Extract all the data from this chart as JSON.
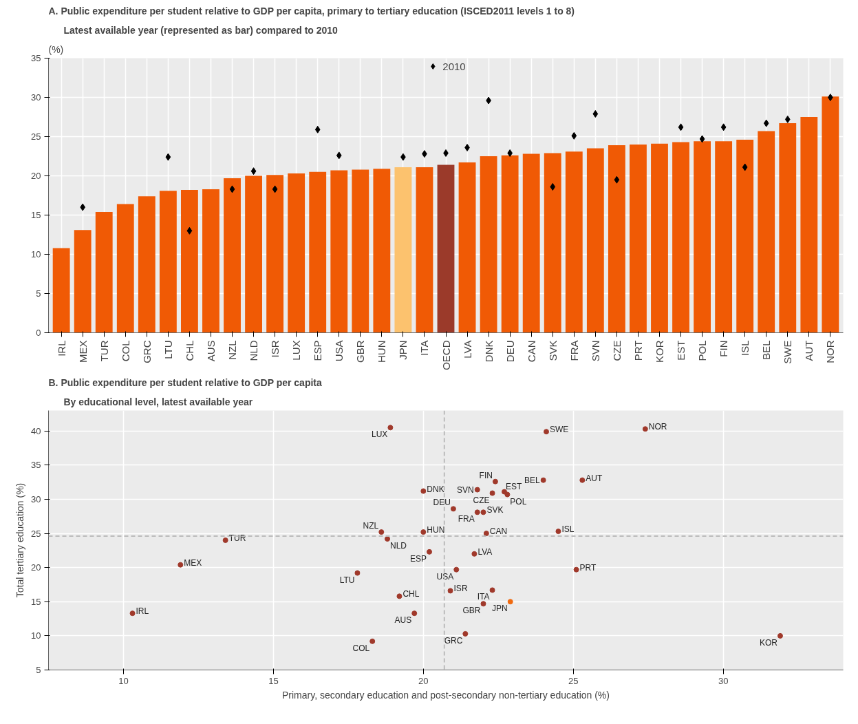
{
  "chart_data": [
    {
      "type": "bar",
      "title": "A. Public expenditure per student relative to GDP per capita, primary to tertiary education (ISCED2011 levels 1 to 8)",
      "subtitle": "Latest available year (represented as bar) compared to 2010",
      "ylabel": "(%)",
      "categories": [
        "IRL",
        "MEX",
        "TUR",
        "COL",
        "GRC",
        "LTU",
        "CHL",
        "AUS",
        "NZL",
        "NLD",
        "ISR",
        "LUX",
        "ESP",
        "USA",
        "GBR",
        "HUN",
        "JPN",
        "ITA",
        "OECD",
        "LVA",
        "DNK",
        "DEU",
        "CAN",
        "SVK",
        "FRA",
        "SVN",
        "CZE",
        "PRT",
        "KOR",
        "EST",
        "POL",
        "FIN",
        "ISL",
        "BEL",
        "SWE",
        "AUT",
        "NOR"
      ],
      "series": [
        {
          "type": "bar",
          "colors": [
            "#f05a05",
            "#f05a05",
            "#f05a05",
            "#f05a05",
            "#f05a05",
            "#f05a05",
            "#f05a05",
            "#f05a05",
            "#f05a05",
            "#f05a05",
            "#f05a05",
            "#f05a05",
            "#f05a05",
            "#f05a05",
            "#f05a05",
            "#f05a05",
            "#fcc26e",
            "#f05a05",
            "#9b3a2a",
            "#f05a05",
            "#f05a05",
            "#f05a05",
            "#f05a05",
            "#f05a05",
            "#f05a05",
            "#f05a05",
            "#f05a05",
            "#f05a05",
            "#f05a05",
            "#f05a05",
            "#f05a05",
            "#f05a05",
            "#f05a05",
            "#f05a05",
            "#f05a05",
            "#f05a05",
            "#f05a05"
          ],
          "values": [
            10.8,
            13.1,
            15.4,
            16.4,
            17.4,
            18.1,
            18.2,
            18.3,
            19.7,
            20.0,
            20.1,
            20.3,
            20.5,
            20.7,
            20.8,
            20.9,
            21.1,
            21.1,
            21.4,
            21.7,
            22.5,
            22.6,
            22.8,
            22.9,
            23.1,
            23.5,
            23.9,
            24.0,
            24.1,
            24.3,
            24.4,
            24.4,
            24.6,
            25.7,
            26.7,
            27.5,
            30.1
          ]
        },
        {
          "type": "scatter",
          "name": "2010",
          "color": "#000000",
          "marker": "diamond",
          "values": [
            null,
            16.0,
            null,
            null,
            null,
            22.4,
            13.0,
            null,
            18.3,
            20.6,
            18.3,
            null,
            25.9,
            22.6,
            null,
            null,
            22.4,
            22.8,
            22.9,
            23.6,
            29.6,
            22.9,
            null,
            18.6,
            25.1,
            27.9,
            19.5,
            null,
            null,
            26.2,
            24.7,
            26.2,
            21.1,
            26.7,
            27.2,
            null,
            30.0
          ]
        }
      ],
      "ylim": [
        0,
        35
      ],
      "yticks": [
        0,
        5,
        10,
        15,
        20,
        25,
        30,
        35
      ],
      "grid": true,
      "legend": "top"
    },
    {
      "type": "scatter",
      "title": "B. Public expenditure per student relative to GDP per capita",
      "subtitle": "By educational level, latest available year",
      "xlabel": "Primary, secondary education and post-secondary non-tertiary education (%)",
      "ylabel": "Total tertiary education (%)",
      "x": [
        18.9,
        24.1,
        27.4,
        25.3,
        24.0,
        22.4,
        22.7,
        22.8,
        22.3,
        21.8,
        20.0,
        21.0,
        21.8,
        22.0,
        20.0,
        22.1,
        24.5,
        18.6,
        18.8,
        13.4,
        20.2,
        21.7,
        11.9,
        25.1,
        21.1,
        17.8,
        20.9,
        22.3,
        19.2,
        22.9,
        22.0,
        10.3,
        19.7,
        21.4,
        18.3,
        31.9
      ],
      "values": [
        40.5,
        39.9,
        40.3,
        32.8,
        32.8,
        32.6,
        31.1,
        30.7,
        30.9,
        31.4,
        31.2,
        28.6,
        28.1,
        28.1,
        25.2,
        25.0,
        25.3,
        25.2,
        24.2,
        24.0,
        22.3,
        22.0,
        20.4,
        19.7,
        19.7,
        19.2,
        16.6,
        16.7,
        15.8,
        15.0,
        14.7,
        13.3,
        13.3,
        10.3,
        9.2,
        10.0
      ],
      "colors": [
        "#a0392b",
        "#a0392b",
        "#a0392b",
        "#a0392b",
        "#a0392b",
        "#a0392b",
        "#a0392b",
        "#a0392b",
        "#a0392b",
        "#a0392b",
        "#a0392b",
        "#a0392b",
        "#a0392b",
        "#a0392b",
        "#a0392b",
        "#a0392b",
        "#a0392b",
        "#a0392b",
        "#a0392b",
        "#a0392b",
        "#a0392b",
        "#a0392b",
        "#a0392b",
        "#a0392b",
        "#a0392b",
        "#a0392b",
        "#a0392b",
        "#a0392b",
        "#a0392b",
        "#f06a10",
        "#a0392b",
        "#a0392b",
        "#a0392b",
        "#a0392b",
        "#a0392b",
        "#a0392b"
      ],
      "annotations": [
        {
          "text": "LUX",
          "x": 18.9,
          "y": 40.5
        },
        {
          "text": "SWE",
          "x": 24.1,
          "y": 39.9
        },
        {
          "text": "NOR",
          "x": 27.4,
          "y": 40.3
        },
        {
          "text": "AUT",
          "x": 25.3,
          "y": 32.8
        },
        {
          "text": "BEL",
          "x": 24.0,
          "y": 32.8
        },
        {
          "text": "FIN",
          "x": 22.4,
          "y": 32.6
        },
        {
          "text": "EST",
          "x": 22.7,
          "y": 31.1
        },
        {
          "text": "POL",
          "x": 22.8,
          "y": 30.7
        },
        {
          "text": "CZE",
          "x": 22.3,
          "y": 30.9
        },
        {
          "text": "SVN",
          "x": 21.8,
          "y": 31.4
        },
        {
          "text": "DNK",
          "x": 20.0,
          "y": 31.2
        },
        {
          "text": "DEU",
          "x": 21.0,
          "y": 28.6
        },
        {
          "text": "FRA",
          "x": 21.8,
          "y": 28.1
        },
        {
          "text": "SVK",
          "x": 22.0,
          "y": 28.1
        },
        {
          "text": "HUN",
          "x": 20.0,
          "y": 25.2
        },
        {
          "text": "CAN",
          "x": 22.1,
          "y": 25.0
        },
        {
          "text": "ISL",
          "x": 24.5,
          "y": 25.3
        },
        {
          "text": "NZL",
          "x": 18.6,
          "y": 25.2
        },
        {
          "text": "NLD",
          "x": 18.8,
          "y": 24.2
        },
        {
          "text": "TUR",
          "x": 13.4,
          "y": 24.0
        },
        {
          "text": "ESP",
          "x": 20.2,
          "y": 22.3
        },
        {
          "text": "LVA",
          "x": 21.7,
          "y": 22.0
        },
        {
          "text": "MEX",
          "x": 11.9,
          "y": 20.4
        },
        {
          "text": "PRT",
          "x": 25.1,
          "y": 19.7
        },
        {
          "text": "USA",
          "x": 21.1,
          "y": 19.7
        },
        {
          "text": "LTU",
          "x": 17.8,
          "y": 19.2
        },
        {
          "text": "ISR",
          "x": 20.9,
          "y": 16.6
        },
        {
          "text": "ITA",
          "x": 22.3,
          "y": 16.7
        },
        {
          "text": "CHL",
          "x": 19.2,
          "y": 15.8
        },
        {
          "text": "JPN",
          "x": 22.9,
          "y": 15.0
        },
        {
          "text": "GBR",
          "x": 22.0,
          "y": 14.7
        },
        {
          "text": "IRL",
          "x": 10.3,
          "y": 13.3
        },
        {
          "text": "AUS",
          "x": 19.7,
          "y": 13.3
        },
        {
          "text": "GRC",
          "x": 21.4,
          "y": 10.3
        },
        {
          "text": "COL",
          "x": 18.3,
          "y": 9.2
        },
        {
          "text": "KOR",
          "x": 31.9,
          "y": 10.0
        }
      ],
      "xlim": [
        7.5,
        34
      ],
      "ylim": [
        5,
        43
      ],
      "xticks": [
        10,
        15,
        20,
        25,
        30
      ],
      "yticks": [
        5,
        10,
        15,
        20,
        25,
        30,
        35,
        40
      ],
      "grid": true,
      "marker": "circle",
      "ref_lines": [
        {
          "axis": "x",
          "value": 20.7,
          "color": "#bbbbbb",
          "line_style": "dashed"
        },
        {
          "axis": "y",
          "value": 24.6,
          "color": "#bbbbbb",
          "line_style": "dashed"
        }
      ]
    }
  ]
}
